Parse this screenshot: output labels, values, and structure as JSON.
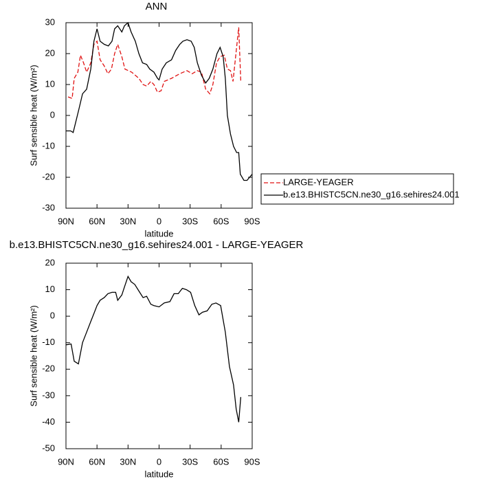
{
  "chart_data": [
    {
      "type": "line",
      "title": "ANN",
      "xlabel": "latitude",
      "ylabel": "Surf sensible heat (W/m²)",
      "xlim": [
        90,
        -90
      ],
      "xticks": [
        {
          "value": 90,
          "label": "90N"
        },
        {
          "value": 60,
          "label": "60N"
        },
        {
          "value": 30,
          "label": "30N"
        },
        0,
        {
          "value": -30,
          "label": "30S"
        },
        {
          "value": -60,
          "label": "60S"
        },
        {
          "value": -90,
          "label": "90S"
        }
      ],
      "ylim": [
        -30,
        30
      ],
      "yticks": [
        -30,
        -20,
        -10,
        0,
        10,
        20,
        30
      ],
      "series": [
        {
          "name": "LARGE-YEAGER",
          "color": "#e01010",
          "dash": true,
          "x": [
            88,
            84,
            82,
            78.5,
            76,
            73,
            70,
            66,
            63,
            60,
            57,
            53,
            49.5,
            46,
            43,
            40,
            36,
            33,
            26.5,
            19.5,
            15.5,
            12,
            8,
            5,
            1.5,
            -2,
            -5,
            -12,
            -20,
            -27,
            -32,
            -37,
            -41,
            -45,
            -49,
            -52,
            -55.5,
            -59,
            -63,
            -66,
            -69,
            -71.5,
            -77,
            -79
          ],
          "values": [
            6,
            5.5,
            12,
            14,
            19.5,
            17,
            14,
            17,
            23,
            24,
            18,
            16,
            13.5,
            15,
            20,
            23,
            19,
            15,
            14,
            12,
            10,
            9.5,
            11,
            10,
            7.5,
            8,
            11,
            12,
            13.5,
            14.5,
            13.5,
            14.5,
            14,
            8.5,
            7,
            10,
            17,
            19,
            19.5,
            15,
            14.5,
            11,
            28.5,
            11
          ]
        },
        {
          "name": "b.e13.BHISTC5CN.ne30_g16.sehires24.001",
          "color": "#000000",
          "dash": false,
          "x": [
            90,
            85.5,
            83,
            77.5,
            74,
            70,
            66,
            63,
            60,
            57,
            53,
            49,
            45.5,
            43,
            40,
            36,
            33.5,
            30,
            27,
            23,
            19.5,
            16,
            12,
            9,
            5,
            1.5,
            0,
            -3,
            -7,
            -12,
            -16,
            -20,
            -23,
            -27,
            -31,
            -34,
            -37,
            -41,
            -45,
            -48.5,
            -52,
            -56,
            -59,
            -62,
            -64,
            -66,
            -69,
            -72,
            -75,
            -77,
            -78.5,
            -82,
            -85,
            -90
          ],
          "values": [
            -5,
            -5,
            -5.5,
            2,
            7,
            8.5,
            15,
            24,
            28,
            24,
            23,
            22.5,
            24,
            28,
            29,
            27,
            29,
            30,
            27,
            24,
            20,
            17,
            16.5,
            15,
            14,
            12,
            11.5,
            15,
            17,
            18,
            21,
            23,
            24,
            24.5,
            24,
            22,
            17,
            13,
            10.5,
            12,
            15,
            20,
            22,
            19,
            12,
            0,
            -6,
            -10,
            -12,
            -12,
            -19,
            -21,
            -21,
            -19
          ]
        }
      ]
    },
    {
      "type": "line",
      "title": "b.e13.BHISTC5CN.ne30_g16.sehires24.001 - LARGE-YEAGER",
      "xlabel": "latitude",
      "ylabel": "Surf sensible heat (W/m²)",
      "xlim": [
        90,
        -90
      ],
      "xticks": [
        {
          "value": 90,
          "label": "90N"
        },
        {
          "value": 60,
          "label": "60N"
        },
        {
          "value": 30,
          "label": "30N"
        },
        0,
        {
          "value": -30,
          "label": "30S"
        },
        {
          "value": -60,
          "label": "60S"
        },
        {
          "value": -90,
          "label": "90S"
        }
      ],
      "ylim": [
        -50,
        20
      ],
      "yticks": [
        -50,
        -40,
        -30,
        -20,
        -10,
        0,
        10,
        20
      ],
      "color": "#000000",
      "x": [
        90,
        85,
        82,
        78,
        74,
        70,
        66,
        63,
        60,
        57,
        53,
        49.5,
        45.5,
        42,
        40,
        36,
        33.5,
        30,
        27,
        23.5,
        19.5,
        15.5,
        12,
        8,
        5,
        0,
        -5,
        -10.5,
        -14.5,
        -18.5,
        -22.5,
        -26.5,
        -30.5,
        -34.5,
        -38.5,
        -42,
        -46.5,
        -51,
        -55,
        -59.5,
        -64,
        -68,
        -72,
        -74.5,
        -77,
        -79
      ],
      "values": [
        -10.8,
        -10.5,
        -17,
        -18,
        -10,
        -6,
        -2,
        1,
        4,
        6,
        7,
        8.5,
        9,
        9,
        6,
        8,
        11,
        15,
        13,
        12,
        9.5,
        7,
        7.5,
        4.5,
        4,
        3.5,
        5,
        5.5,
        8.5,
        8.5,
        10.5,
        10,
        9,
        4,
        0.5,
        1.5,
        2,
        4.5,
        5,
        4,
        -6,
        -19,
        -26,
        -35,
        -40,
        -30.5
      ]
    }
  ]
}
